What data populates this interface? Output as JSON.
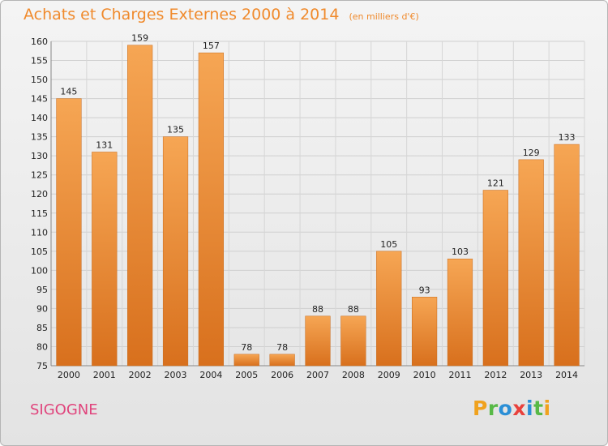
{
  "header": {
    "title": "Achats et Charges Externes 2000 à 2014",
    "subtitle": "(en milliers d'€)"
  },
  "footer": {
    "place": "SIGOGNE",
    "logo_letters": [
      "P",
      "r",
      "o",
      "x",
      "i",
      "t",
      "i"
    ],
    "logo_colors": [
      "#f0a21e",
      "#58b947",
      "#2b8fd6",
      "#e8413c",
      "#2b8fd6",
      "#58b947",
      "#f0a21e"
    ]
  },
  "colors": {
    "bar_top": "#f6a654",
    "bar_bottom": "#d8701d",
    "accent": "#f08a2c",
    "place": "#e0447c"
  },
  "chart_data": {
    "type": "bar",
    "title": "Achats et Charges Externes 2000 à 2014",
    "subtitle": "(en milliers d'€)",
    "xlabel": "",
    "ylabel": "",
    "categories": [
      "2000",
      "2001",
      "2002",
      "2003",
      "2004",
      "2005",
      "2006",
      "2007",
      "2008",
      "2009",
      "2010",
      "2011",
      "2012",
      "2013",
      "2014"
    ],
    "values": [
      145,
      131,
      159,
      135,
      157,
      78,
      78,
      88,
      88,
      105,
      93,
      103,
      121,
      129,
      133
    ],
    "ylim": [
      75,
      160
    ],
    "yticks": [
      75,
      80,
      85,
      90,
      95,
      100,
      105,
      110,
      115,
      120,
      125,
      130,
      135,
      140,
      145,
      150,
      155,
      160
    ],
    "grid": true,
    "data_labels": true
  }
}
